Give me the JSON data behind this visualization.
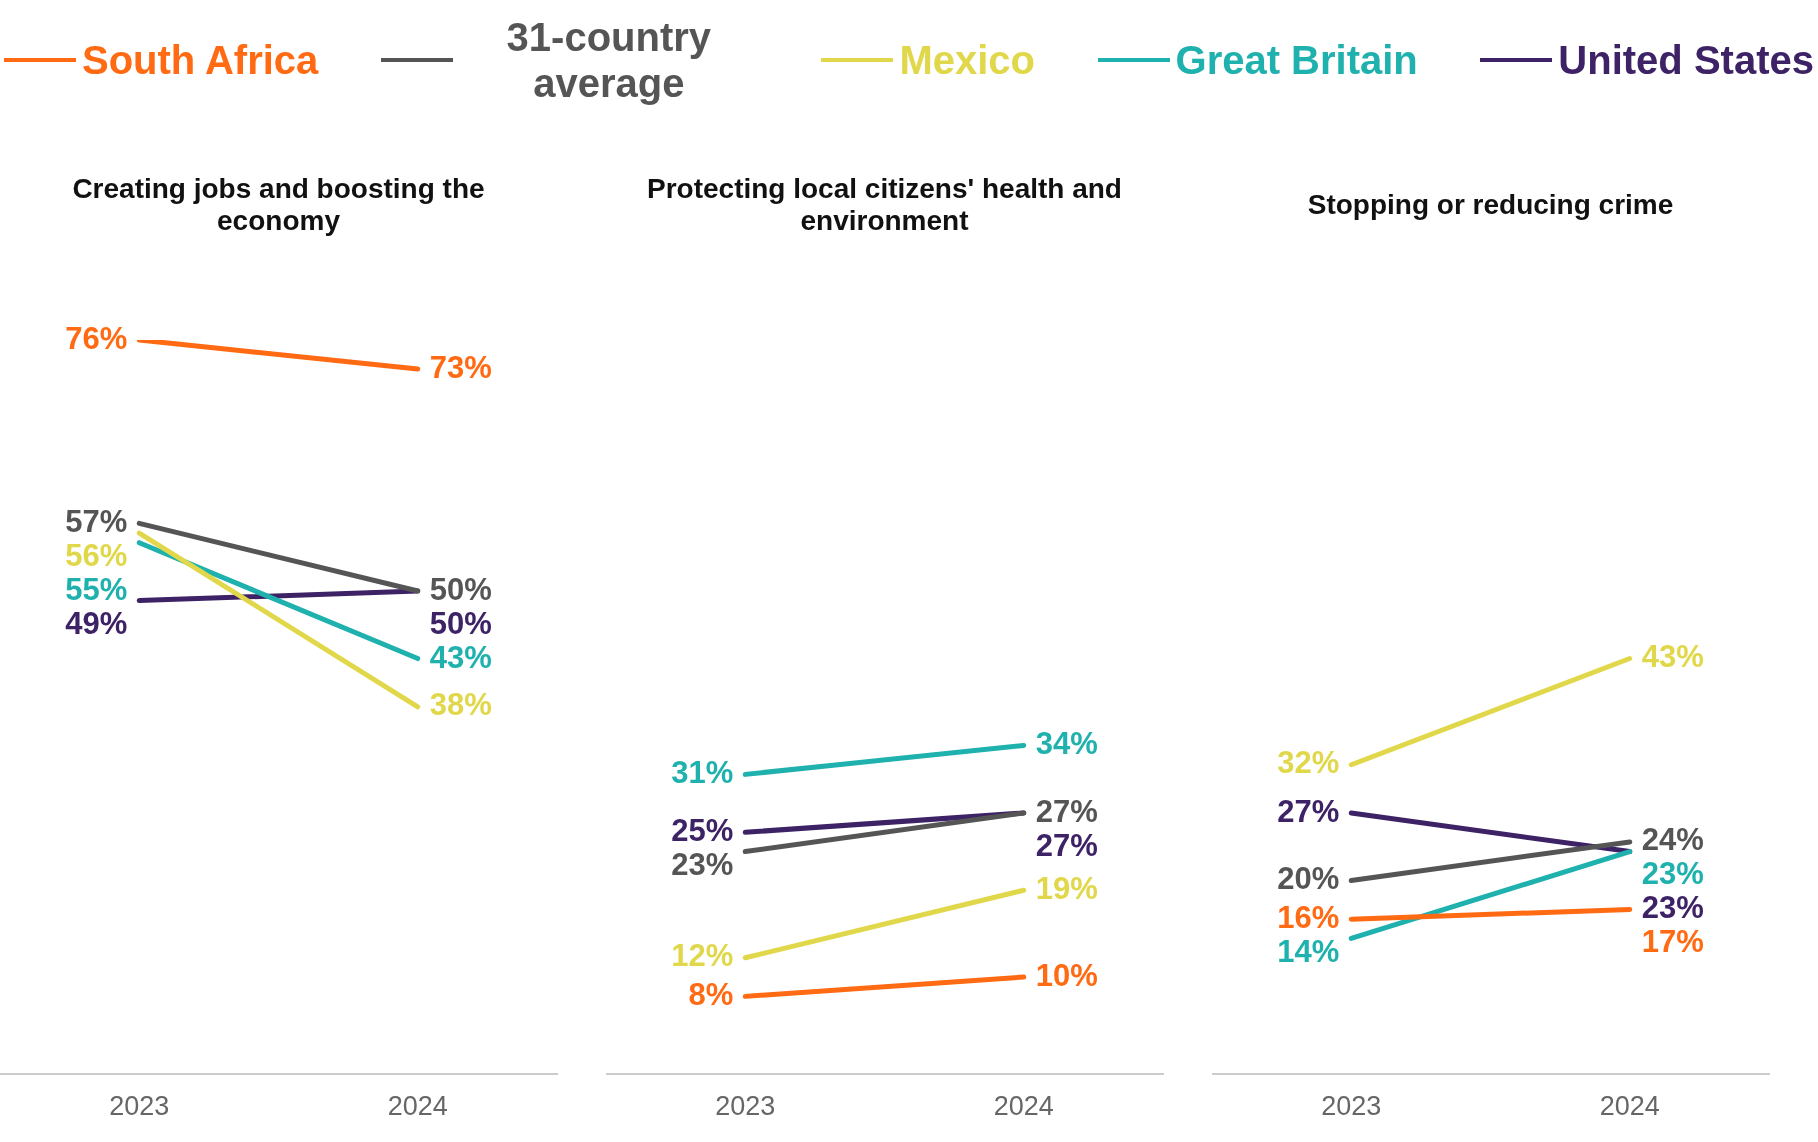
{
  "chart_data": [
    {
      "type": "line",
      "title": "Creating jobs and boosting the economy",
      "categories": [
        "2023",
        "2024"
      ],
      "tick_labels": "x",
      "legend": "top",
      "grid": false,
      "marker": "none",
      "line_style": "solid",
      "series": [
        {
          "name": "South Africa",
          "color": "#ff6a13",
          "values": [
            76,
            73
          ],
          "value_labels": [
            "76%",
            "73%"
          ]
        },
        {
          "name": "31-country average",
          "color": "#555555",
          "values": [
            57,
            50
          ],
          "value_labels": [
            "57%",
            "50%"
          ]
        },
        {
          "name": "Mexico",
          "color": "#e0d84a",
          "values": [
            56,
            38
          ],
          "value_labels": [
            "56%",
            "38%"
          ]
        },
        {
          "name": "Great Britain",
          "color": "#1fb1ad",
          "values": [
            55,
            43
          ],
          "value_labels": [
            "55%",
            "43%"
          ]
        },
        {
          "name": "United States",
          "color": "#3d2266",
          "values": [
            49,
            50
          ],
          "value_labels": [
            "49%",
            "50%"
          ]
        }
      ]
    },
    {
      "type": "line",
      "title": "Protecting local citizens' health and environment",
      "categories": [
        "2023",
        "2024"
      ],
      "tick_labels": "x",
      "grid": false,
      "marker": "none",
      "line_style": "solid",
      "series": [
        {
          "color": "#ff6a13",
          "values": [
            8,
            10
          ],
          "value_labels": [
            "8%",
            "10%"
          ]
        },
        {
          "color": "#555555",
          "values": [
            23,
            27
          ],
          "value_labels": [
            "23%",
            "27%"
          ]
        },
        {
          "color": "#e0d84a",
          "values": [
            12,
            19
          ],
          "value_labels": [
            "12%",
            "19%"
          ]
        },
        {
          "color": "#1fb1ad",
          "values": [
            31,
            34
          ],
          "value_labels": [
            "31%",
            "34%"
          ]
        },
        {
          "color": "#3d2266",
          "values": [
            25,
            27
          ],
          "value_labels": [
            "25%",
            "27%"
          ]
        }
      ]
    },
    {
      "type": "line",
      "title": "Stopping or reducing crime",
      "categories": [
        "2023",
        "2024"
      ],
      "tick_labels": "x",
      "grid": false,
      "marker": "none",
      "line_style": "solid",
      "series": [
        {
          "color": "#ff6a13",
          "values": [
            16,
            17
          ],
          "value_labels": [
            "16%",
            "17%"
          ]
        },
        {
          "color": "#555555",
          "values": [
            20,
            24
          ],
          "value_labels": [
            "20%",
            "24%"
          ]
        },
        {
          "color": "#e0d84a",
          "values": [
            32,
            43
          ],
          "value_labels": [
            "32%",
            "43%"
          ]
        },
        {
          "color": "#1fb1ad",
          "values": [
            14,
            23
          ],
          "value_labels": [
            "14%",
            "23%"
          ]
        },
        {
          "color": "#3d2266",
          "values": [
            27,
            23
          ],
          "value_labels": [
            "27%",
            "23%"
          ]
        }
      ]
    }
  ]
}
